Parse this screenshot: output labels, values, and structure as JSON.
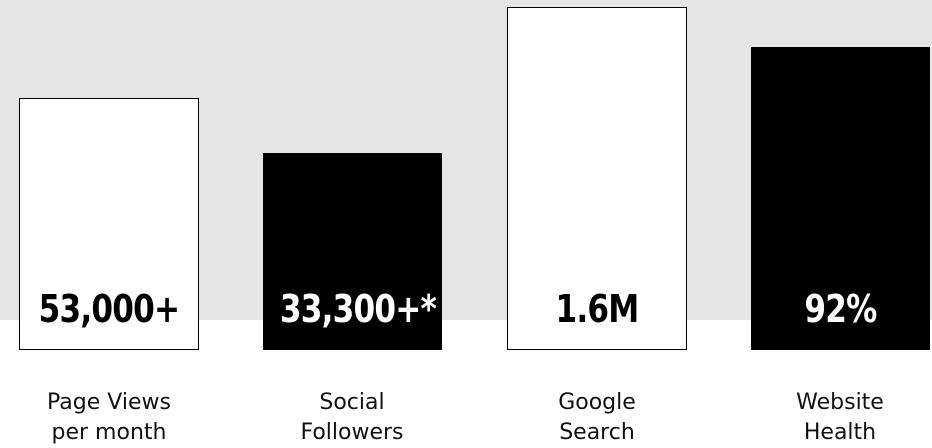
{
  "stats": [
    {
      "value": "53,000+",
      "label_line1": "Page Views",
      "label_line2": "per month",
      "style": "white"
    },
    {
      "value": "33,300+*",
      "label_line1": "Social",
      "label_line2": "Followers",
      "style": "black"
    },
    {
      "value": "1.6M",
      "label_line1": "Google",
      "label_line2": "Search",
      "style": "white"
    },
    {
      "value": "92%",
      "label_line1": "Website",
      "label_line2": "Health",
      "style": "black"
    }
  ],
  "colors": {
    "band": "#e5e5e5",
    "bar_dark": "#000000",
    "bar_light": "#ffffff"
  }
}
